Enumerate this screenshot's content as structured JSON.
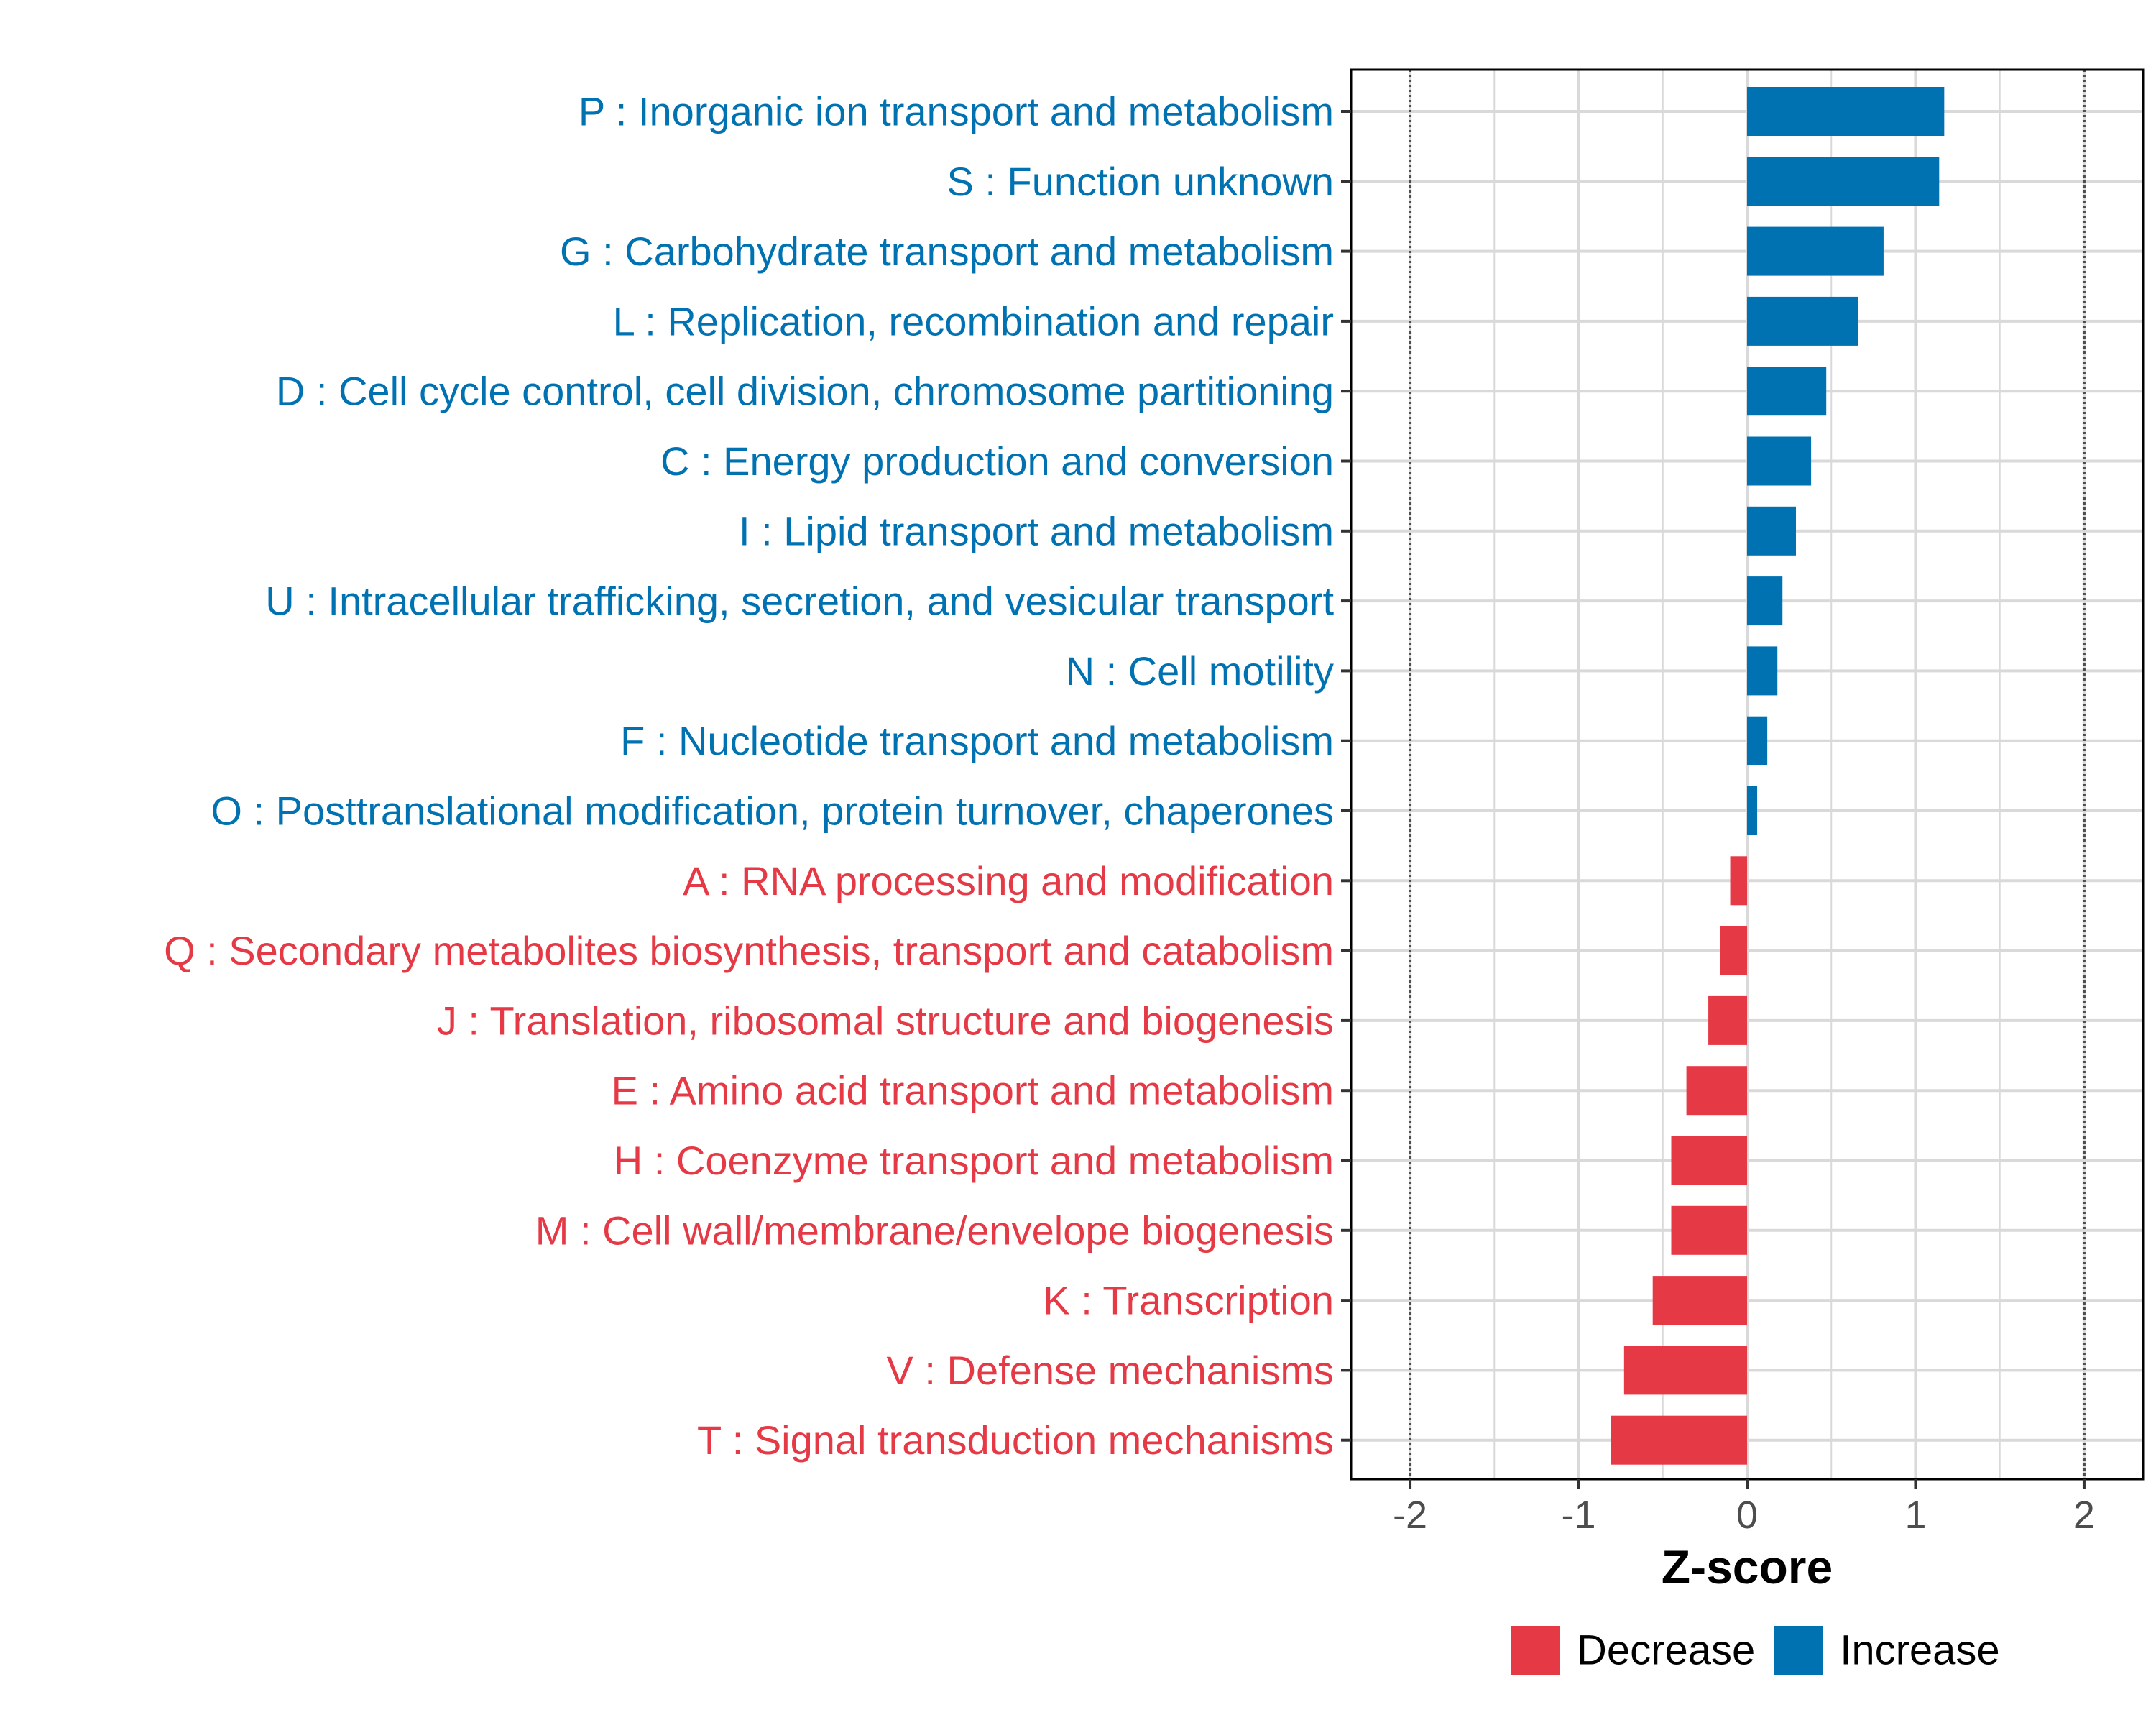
{
  "colors": {
    "increase": "#0072b2",
    "decrease": "#e63946",
    "grid": "#d9d9d9",
    "panel_border": "#000000",
    "threshold_line": "#4d4d4d",
    "tick_text": "#4d4d4d"
  },
  "chart_data": {
    "type": "bar",
    "orientation": "horizontal",
    "title": "",
    "xlabel": "Z-score",
    "ylabel": "",
    "xlim": [
      -2.35,
      2.35
    ],
    "x_ticks": [
      -2,
      -1,
      0,
      1,
      2
    ],
    "x_tick_labels": [
      "-2",
      "-1",
      "0",
      "1",
      "2"
    ],
    "reference_lines": [
      -2,
      2
    ],
    "grid": true,
    "legend": {
      "position": "bottom",
      "entries": [
        {
          "key": "decrease",
          "label": "Decrease"
        },
        {
          "key": "increase",
          "label": "Increase"
        }
      ]
    },
    "categories": [
      "P : Inorganic ion transport and metabolism",
      "S : Function unknown",
      "G : Carbohydrate transport and metabolism",
      "L : Replication, recombination and repair",
      "D : Cell cycle control, cell division, chromosome partitioning",
      "C : Energy production and conversion",
      "I : Lipid transport and metabolism",
      "U : Intracellular trafficking, secretion, and vesicular transport",
      "N : Cell motility",
      "F : Nucleotide transport and metabolism",
      "O : Posttranslational modification, protein turnover, chaperones",
      "A : RNA processing and modification",
      "Q : Secondary metabolites biosynthesis, transport and catabolism",
      "J : Translation, ribosomal structure and biogenesis",
      "E : Amino acid transport and metabolism",
      "H : Coenzyme transport and metabolism",
      "M : Cell wall/membrane/envelope biogenesis",
      "K : Transcription",
      "V : Defense mechanisms",
      "T : Signal transduction mechanisms"
    ],
    "values": [
      1.17,
      1.14,
      0.81,
      0.66,
      0.47,
      0.38,
      0.29,
      0.21,
      0.18,
      0.12,
      0.06,
      -0.1,
      -0.16,
      -0.23,
      -0.36,
      -0.45,
      -0.45,
      -0.56,
      -0.73,
      -0.81
    ],
    "groups": [
      "increase",
      "increase",
      "increase",
      "increase",
      "increase",
      "increase",
      "increase",
      "increase",
      "increase",
      "increase",
      "increase",
      "decrease",
      "decrease",
      "decrease",
      "decrease",
      "decrease",
      "decrease",
      "decrease",
      "decrease",
      "decrease"
    ]
  }
}
